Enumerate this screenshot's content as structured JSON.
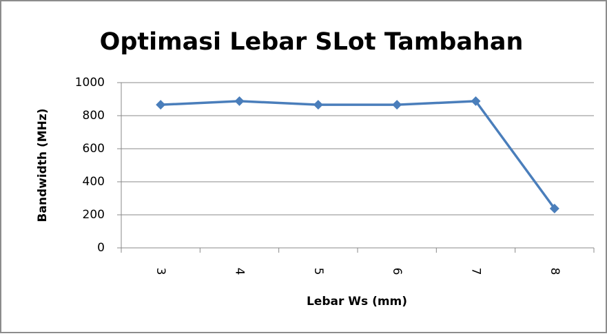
{
  "chart_data": {
    "type": "line",
    "title": "Optimasi Lebar SLot Tambahan",
    "xlabel": "Lebar Ws (mm)",
    "ylabel": "Bandwidth (MHz)",
    "categories": [
      "3",
      "4",
      "5",
      "6",
      "7",
      "8"
    ],
    "series": [
      {
        "name": "Bandwidth",
        "color": "#4a7ebb",
        "values": [
          866,
          888,
          866,
          866,
          888,
          238
        ]
      }
    ],
    "ylim": [
      0,
      1000
    ],
    "yticks": [
      0,
      200,
      400,
      600,
      800,
      1000
    ],
    "grid": true
  }
}
